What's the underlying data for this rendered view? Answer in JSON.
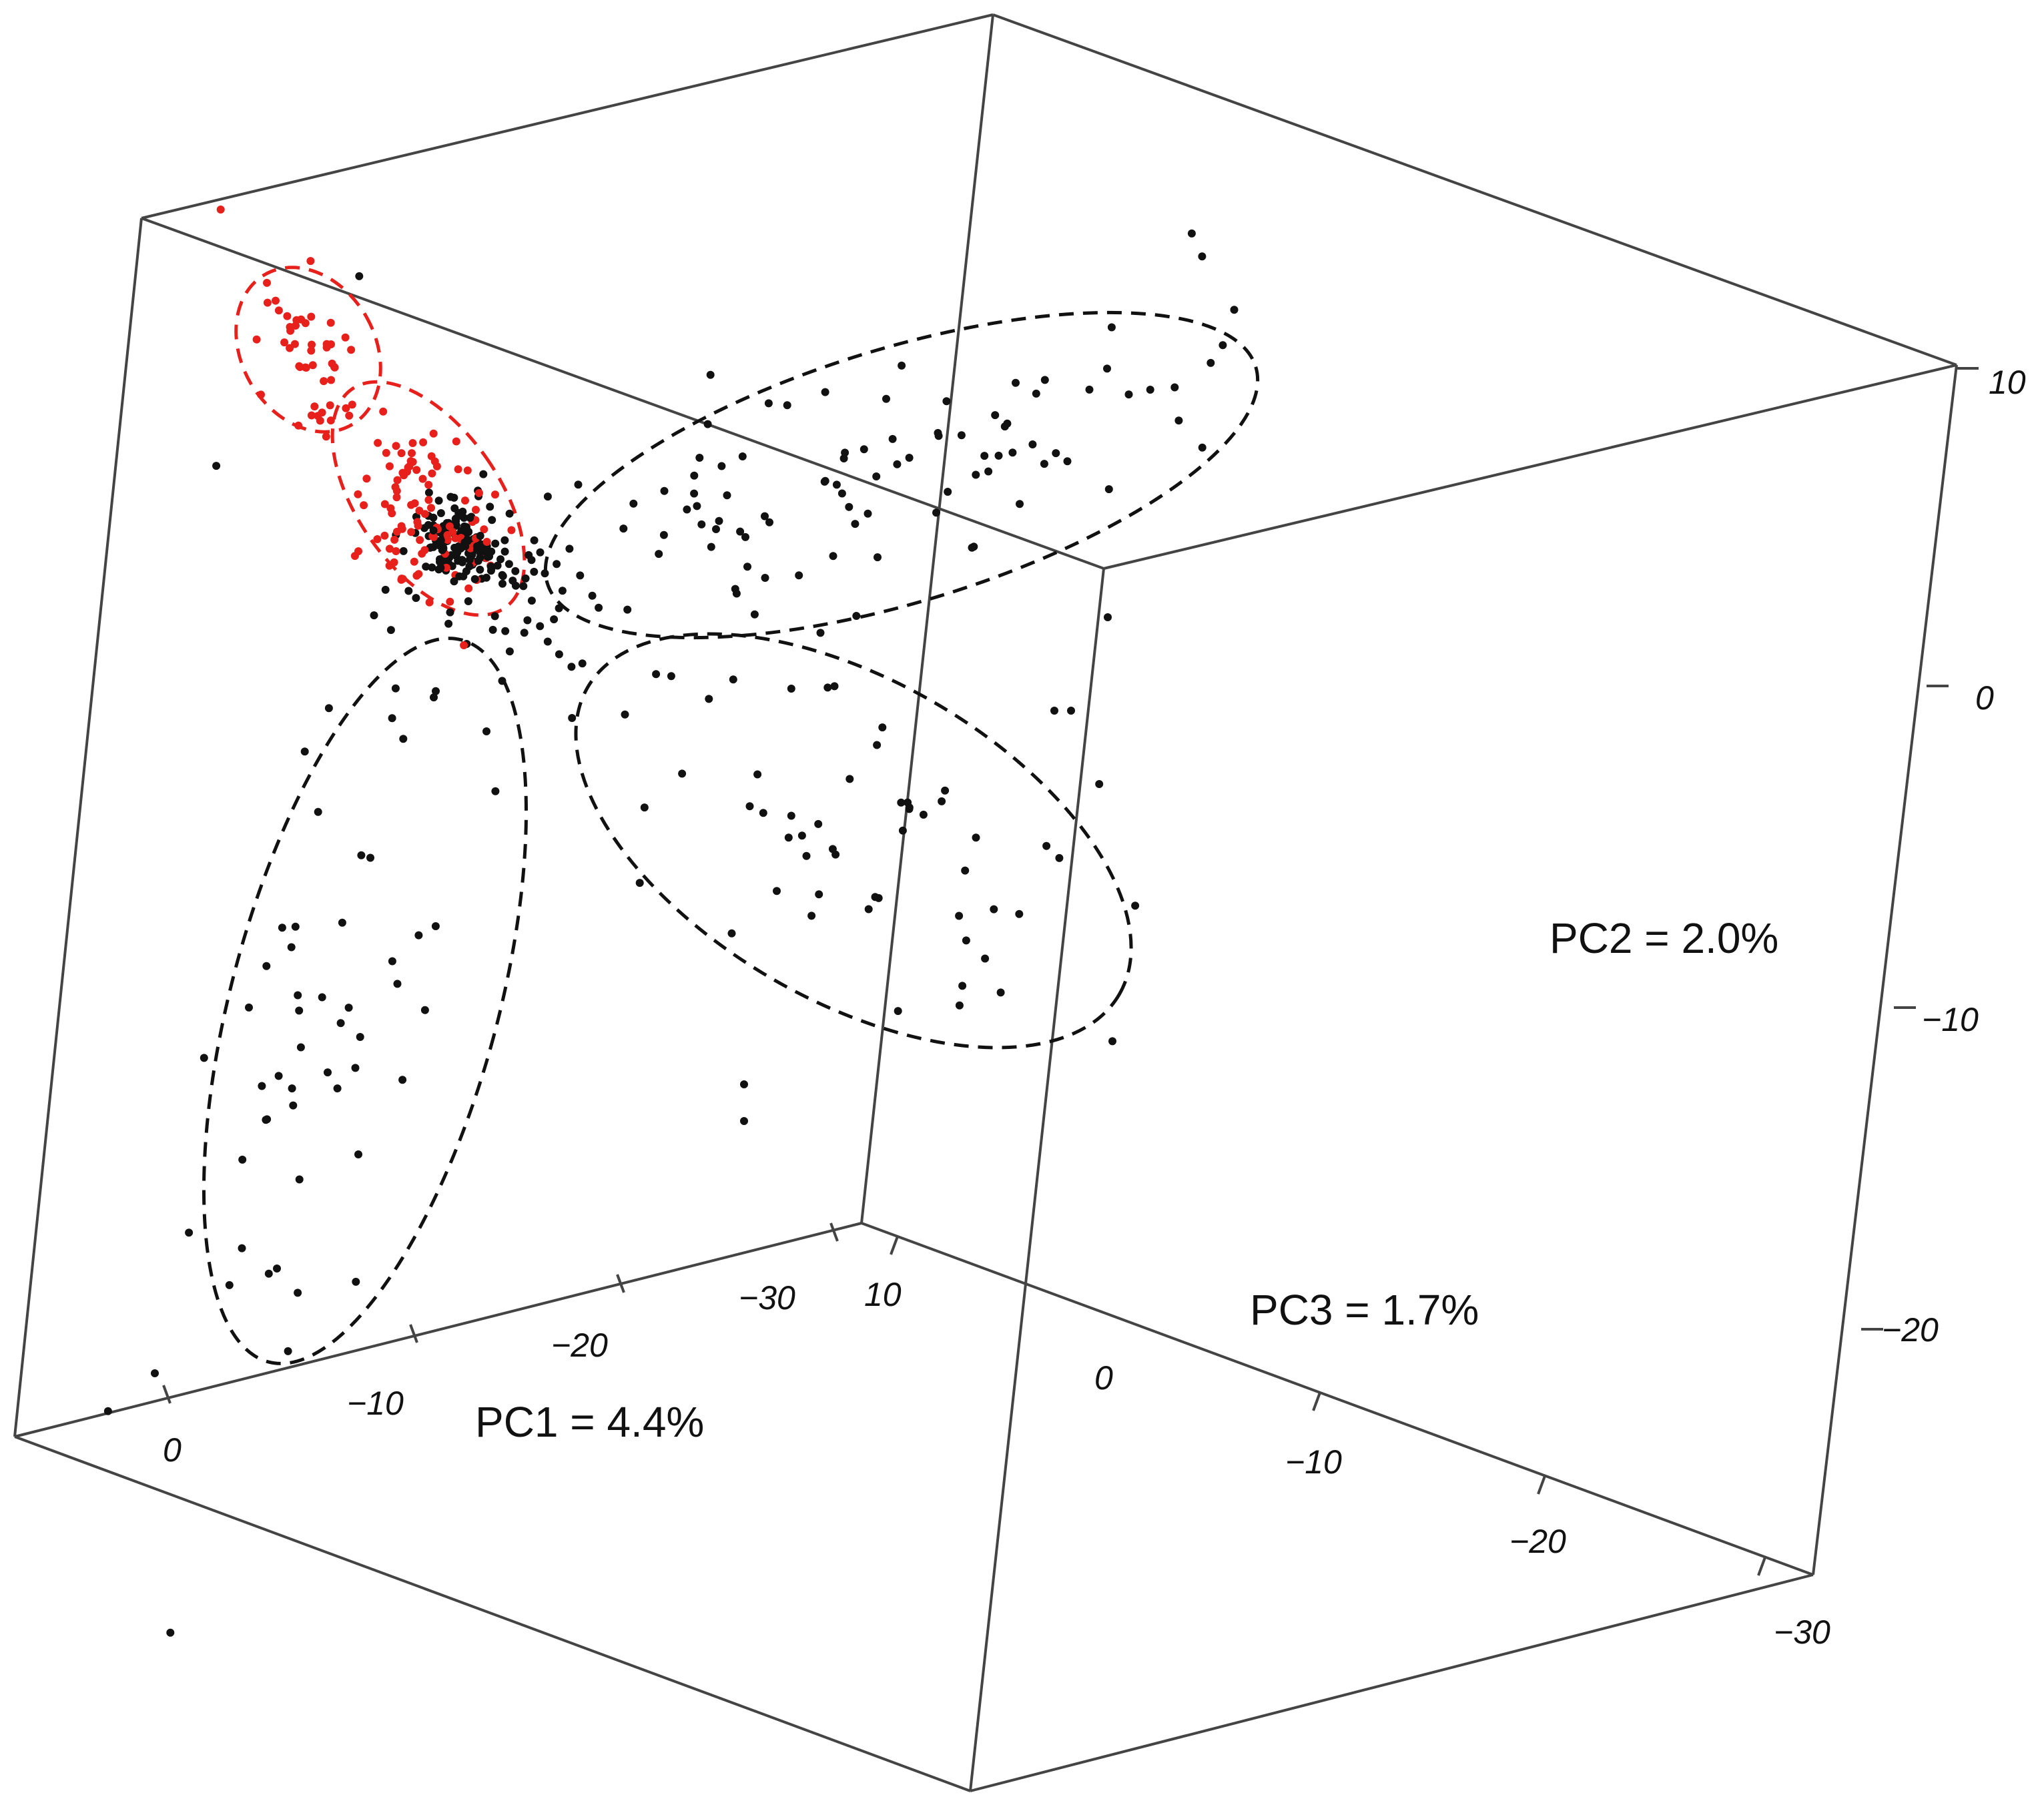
{
  "chart_data": {
    "type": "scatter",
    "projection": "3d",
    "axes": {
      "pc1": {
        "title": "PC1 = 4.4%",
        "ticks": [
          "0",
          "−10",
          "−20",
          "−30"
        ]
      },
      "pc2": {
        "title": "PC2 = 2.0%",
        "ticks": [
          "10",
          "0",
          "−10",
          "−20"
        ]
      },
      "pc3": {
        "title": "PC3 = 1.7%",
        "ticks": [
          "10",
          "0",
          "−10",
          "−20",
          "−30"
        ]
      }
    },
    "grid": false,
    "legend": "none",
    "series": [
      {
        "color": "#e8201c",
        "point_count": 150
      },
      {
        "color": "#111111",
        "point_count": 360
      }
    ],
    "groups": [
      {
        "color": "#e8201c",
        "outline": "dashed"
      },
      {
        "color": "#e8201c",
        "outline": "dashed"
      },
      {
        "color": "#111111",
        "outline": "dashed"
      },
      {
        "color": "#111111",
        "outline": "dashed"
      },
      {
        "color": "#111111",
        "outline": "dashed"
      }
    ]
  }
}
